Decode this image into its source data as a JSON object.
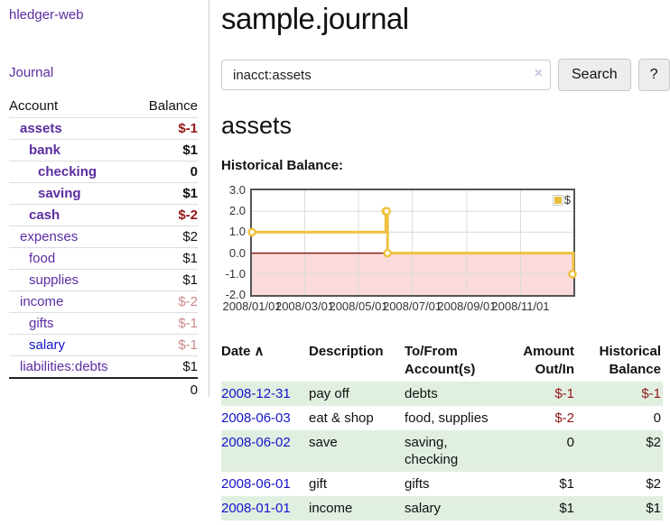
{
  "app": {
    "title": "hledger-web"
  },
  "sidebar": {
    "journal_link": "Journal",
    "table": {
      "headers": {
        "account": "Account",
        "balance": "Balance"
      },
      "rows": [
        {
          "label": "assets",
          "depth": 1,
          "bold": true,
          "color": "purple",
          "balance": "$-1",
          "balance_class": "neg-strong"
        },
        {
          "label": "bank",
          "depth": 2,
          "bold": true,
          "color": "purple",
          "balance": "$1",
          "balance_class": "plain"
        },
        {
          "label": "checking",
          "depth": 3,
          "bold": true,
          "color": "purple",
          "balance": "0",
          "balance_class": "plain"
        },
        {
          "label": "saving",
          "depth": 3,
          "bold": true,
          "color": "purple",
          "balance": "$1",
          "balance_class": "plain"
        },
        {
          "label": "cash",
          "depth": 2,
          "bold": true,
          "color": "purple",
          "balance": "$-2",
          "balance_class": "neg-strong"
        },
        {
          "label": "expenses",
          "depth": 1,
          "bold": false,
          "color": "purple",
          "balance": "$2",
          "balance_class": "plain"
        },
        {
          "label": "food",
          "depth": 2,
          "bold": false,
          "color": "purple",
          "balance": "$1",
          "balance_class": "plain"
        },
        {
          "label": "supplies",
          "depth": 2,
          "bold": false,
          "color": "purple",
          "balance": "$1",
          "balance_class": "plain"
        },
        {
          "label": "income",
          "depth": 1,
          "bold": false,
          "color": "purple",
          "balance": "$-2",
          "balance_class": "neg-light"
        },
        {
          "label": "gifts",
          "depth": 2,
          "bold": false,
          "color": "purple",
          "balance": "$-1",
          "balance_class": "neg-light"
        },
        {
          "label": "salary",
          "depth": 2,
          "bold": false,
          "color": "blue",
          "balance": "$-1",
          "balance_class": "neg-light"
        },
        {
          "label": "liabilities:debts",
          "depth": 1,
          "bold": false,
          "color": "purple",
          "balance": "$1",
          "balance_class": "plain",
          "last": true
        }
      ],
      "total": "0"
    }
  },
  "header": {
    "title": "sample.journal"
  },
  "search": {
    "value": "inacct:assets",
    "clear_icon": "×",
    "button": "Search",
    "help_button": "?"
  },
  "account_page": {
    "title": "assets",
    "chart_label": "Historical Balance:"
  },
  "chart_data": {
    "type": "line",
    "title": "Historical Balance",
    "legend_label": "$",
    "legend_position": "top-right",
    "step": true,
    "grid": true,
    "xlim": [
      0,
      365
    ],
    "ylim": [
      -2,
      3
    ],
    "y_ticks": [
      {
        "value": 3,
        "label": "3.0"
      },
      {
        "value": 2,
        "label": "2.0"
      },
      {
        "value": 1,
        "label": "1.0"
      },
      {
        "value": 0,
        "label": "0.0"
      },
      {
        "value": -1,
        "label": "-1.0"
      },
      {
        "value": -2,
        "label": "-2.0"
      }
    ],
    "x_ticks": [
      {
        "day": 0,
        "label": "2008/01/01"
      },
      {
        "day": 60,
        "label": "2008/03/01"
      },
      {
        "day": 121,
        "label": "2008/05/01"
      },
      {
        "day": 182,
        "label": "2008/07/01"
      },
      {
        "day": 244,
        "label": "2008/09/01"
      },
      {
        "day": 305,
        "label": "2008/11/01"
      }
    ],
    "series": [
      {
        "name": "$",
        "color": "#edc240",
        "points": [
          {
            "date": "2008/01/01",
            "day": 0,
            "value": 1
          },
          {
            "date": "2008/06/01",
            "day": 152,
            "value": 2
          },
          {
            "date": "2008/06/02",
            "day": 153,
            "value": 2
          },
          {
            "date": "2008/06/03",
            "day": 154,
            "value": 0
          },
          {
            "date": "2008/12/31",
            "day": 365,
            "value": -1
          }
        ]
      }
    ],
    "negative_region_color": "#fbdbdb",
    "zero_line_color": "#8b1c1c",
    "grid_color": "#dcdcdc"
  },
  "register": {
    "headers": {
      "date": "Date",
      "sort_icon": "∧",
      "description": "Description",
      "accounts": "To/From Account(s)",
      "amount": "Amount Out/In",
      "balance": "Historical Balance"
    },
    "rows": [
      {
        "date": "2008-12-31",
        "description": "pay off",
        "accounts": "debts",
        "amount": "$-1",
        "balance": "$-1"
      },
      {
        "date": "2008-06-03",
        "description": "eat & shop",
        "accounts": "food, supplies",
        "amount": "$-2",
        "balance": "0"
      },
      {
        "date": "2008-06-02",
        "description": "save",
        "accounts": "saving, checking",
        "amount": "0",
        "balance": "$2"
      },
      {
        "date": "2008-06-01",
        "description": "gift",
        "accounts": "gifts",
        "amount": "$1",
        "balance": "$2"
      },
      {
        "date": "2008-01-01",
        "description": "income",
        "accounts": "salary",
        "amount": "$1",
        "balance": "$1"
      }
    ]
  }
}
